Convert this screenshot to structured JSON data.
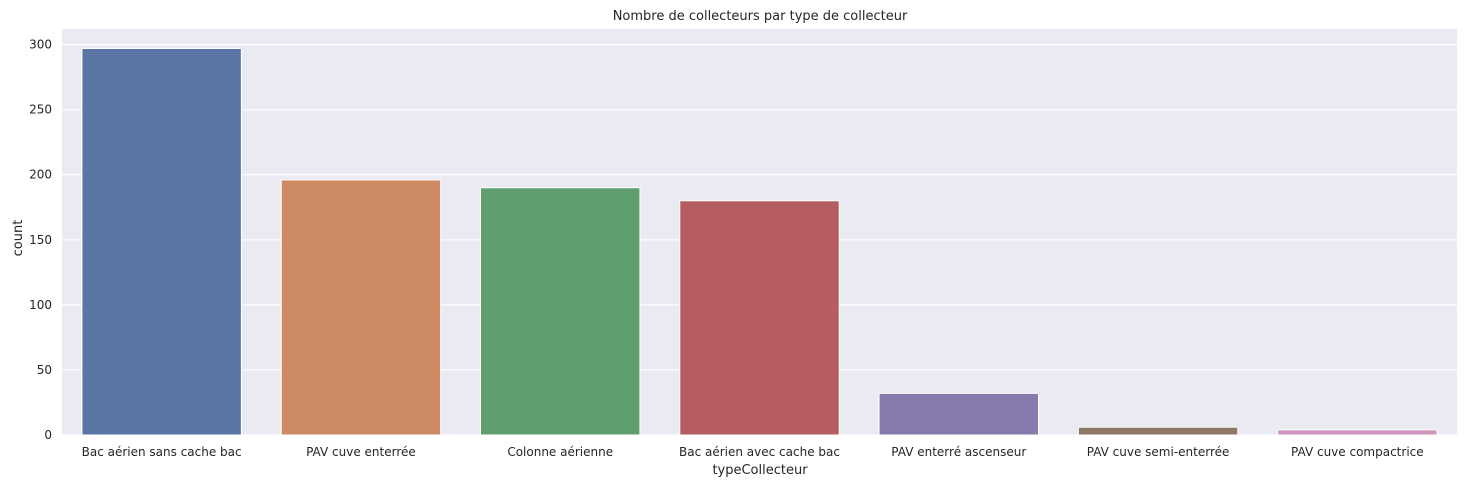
{
  "chart_data": {
    "type": "bar",
    "title": "Nombre de collecteurs par type de collecteur",
    "xlabel": "typeCollecteur",
    "ylabel": "count",
    "categories": [
      "Bac aérien sans cache bac",
      "PAV cuve enterrée",
      "Colonne aérienne",
      "Bac aérien avec cache bac",
      "PAV enterré ascenseur",
      "PAV cuve semi-enterrée",
      "PAV cuve compactrice"
    ],
    "values": [
      297,
      196,
      190,
      180,
      32,
      6,
      4
    ],
    "colors": [
      "#5875a4",
      "#cc8963",
      "#5f9e6e",
      "#b55d60",
      "#857aab",
      "#8d7866",
      "#d095bf"
    ],
    "ylim": [
      0,
      312
    ],
    "yticks": [
      0,
      50,
      100,
      150,
      200,
      250,
      300
    ],
    "grid": true,
    "background": "#eaeaf2",
    "gridColor": "#ffffff"
  }
}
